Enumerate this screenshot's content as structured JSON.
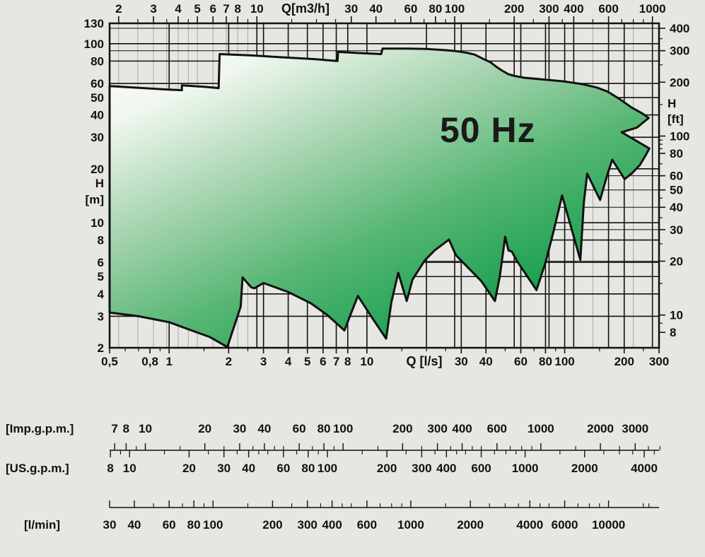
{
  "colors": {
    "background": "#e6e6e2",
    "line": "#111111",
    "grid_minor": "#a9a9a6",
    "envelope_stroke": "#111111",
    "gradient": [
      "#ffffff",
      "#f0f7ef",
      "#a6d4af",
      "#56b674",
      "#1ca152"
    ]
  },
  "chart_data": {
    "type": "area",
    "title": "50 Hz",
    "description": "Pump operating range envelope: head H versus flow Q on log-log axes",
    "x_log_range_ls": [
      0.5,
      300
    ],
    "y_log_range_m": [
      2,
      130
    ],
    "axes": {
      "top": {
        "label": "Q[m3/h]",
        "unit_per_ls": 3.6,
        "major": [
          2,
          3,
          4,
          5,
          6,
          7,
          8,
          10,
          30,
          40,
          60,
          80,
          100,
          200,
          300,
          400,
          600,
          1000
        ],
        "minor": [
          2.5,
          3.5,
          4.5,
          9,
          15,
          20,
          25,
          50,
          70,
          90,
          150,
          250,
          350,
          500,
          700,
          800,
          900
        ]
      },
      "bottom": {
        "label": "Q [l/s]",
        "major": [
          {
            "v": 0.5,
            "t": "0,5"
          },
          {
            "v": 0.8,
            "t": "0,8"
          },
          {
            "v": 1,
            "t": "1"
          },
          {
            "v": 2,
            "t": "2"
          },
          {
            "v": 3,
            "t": "3"
          },
          {
            "v": 4,
            "t": "4"
          },
          {
            "v": 5,
            "t": "5"
          },
          {
            "v": 6,
            "t": "6"
          },
          {
            "v": 7,
            "t": "7"
          },
          {
            "v": 8,
            "t": "8"
          },
          {
            "v": 10,
            "t": "10"
          },
          {
            "v": 30,
            "t": "30"
          },
          {
            "v": 40,
            "t": "40"
          },
          {
            "v": 60,
            "t": "60"
          },
          {
            "v": 80,
            "t": "80"
          },
          {
            "v": 100,
            "t": "100"
          },
          {
            "v": 200,
            "t": "200"
          },
          {
            "v": 300,
            "t": "300"
          }
        ],
        "minor": [
          0.6,
          0.7,
          0.9,
          1.5,
          2.5,
          15,
          20,
          25,
          50,
          70,
          90,
          150,
          250
        ]
      },
      "left": {
        "label": [
          "H",
          "[m]"
        ],
        "major": [
          130,
          100,
          80,
          60,
          50,
          40,
          30,
          20,
          10,
          8,
          6,
          5,
          4,
          3,
          2
        ]
      },
      "right": {
        "label": [
          "H",
          "[ft]"
        ],
        "major": [
          400,
          300,
          200,
          100,
          80,
          60,
          50,
          40,
          30,
          20,
          10,
          8
        ],
        "minor": [
          350,
          250,
          150,
          95,
          90,
          85,
          70,
          45,
          35,
          25,
          15,
          9
        ]
      }
    },
    "grid": {
      "major_v_ls": [
        1,
        2,
        3,
        4,
        5,
        6,
        7,
        8,
        10,
        20,
        30,
        40,
        60,
        80,
        100,
        200
      ],
      "major_v_m3h": [
        10,
        100,
        200,
        300,
        400,
        600,
        1000
      ],
      "minor_v_m3h": [
        2,
        2.5,
        3,
        3.5,
        4,
        4.5,
        5,
        6,
        7,
        8,
        9,
        500,
        800
      ],
      "major_h_m": [
        3,
        4,
        5,
        6,
        8,
        10,
        20,
        30,
        40,
        50,
        60,
        80,
        100
      ],
      "minor_h_ft": [
        20,
        30,
        40,
        50,
        60,
        300,
        400
      ]
    },
    "envelope_qh": [
      [
        0.5,
        3.15
      ],
      [
        0.5,
        58
      ],
      [
        0.97,
        55.5
      ],
      [
        1.16,
        55
      ],
      [
        1.16,
        58.5
      ],
      [
        1.5,
        57.5
      ],
      [
        1.78,
        56.5
      ],
      [
        1.8,
        87.5
      ],
      [
        2.6,
        86
      ],
      [
        3.7,
        84
      ],
      [
        5.5,
        82
      ],
      [
        7.1,
        80
      ],
      [
        7.15,
        90
      ],
      [
        9.5,
        88.5
      ],
      [
        11.8,
        87.5
      ],
      [
        12,
        94
      ],
      [
        16,
        94
      ],
      [
        20,
        93.5
      ],
      [
        25,
        92
      ],
      [
        28,
        91
      ],
      [
        32,
        89
      ],
      [
        35,
        87
      ],
      [
        39,
        82
      ],
      [
        42,
        79
      ],
      [
        45,
        74.5
      ],
      [
        48,
        71
      ],
      [
        52,
        67.5
      ],
      [
        56,
        66
      ],
      [
        63,
        64.5
      ],
      [
        80,
        63
      ],
      [
        100,
        61.5
      ],
      [
        122,
        59.5
      ],
      [
        145,
        57
      ],
      [
        165,
        54
      ],
      [
        190,
        49
      ],
      [
        218,
        44
      ],
      [
        245,
        41
      ],
      [
        266,
        38.5
      ],
      [
        232,
        34
      ],
      [
        194,
        32
      ],
      [
        268,
        26
      ],
      [
        255,
        23.5
      ],
      [
        240,
        21
      ],
      [
        220,
        19
      ],
      [
        201,
        17.5
      ],
      [
        174,
        22.5
      ],
      [
        163,
        18
      ],
      [
        151,
        13.4
      ],
      [
        130,
        18.8
      ],
      [
        125,
        13
      ],
      [
        120,
        6.2
      ],
      [
        97,
        14.2
      ],
      [
        88,
        9
      ],
      [
        80,
        6
      ],
      [
        72,
        4.2
      ],
      [
        58,
        6
      ],
      [
        54,
        6.9
      ],
      [
        52,
        7
      ],
      [
        50,
        8.35
      ],
      [
        47,
        5
      ],
      [
        44.4,
        3.65
      ],
      [
        38,
        4.7
      ],
      [
        32,
        5.7
      ],
      [
        28.5,
        6.5
      ],
      [
        28,
        6.7
      ],
      [
        26,
        8.05
      ],
      [
        22,
        7
      ],
      [
        19.6,
        6.15
      ],
      [
        17,
        4.8
      ],
      [
        15.9,
        3.65
      ],
      [
        14.4,
        5.25
      ],
      [
        13.3,
        3.6
      ],
      [
        12.5,
        2.25
      ],
      [
        10.5,
        3
      ],
      [
        9,
        3.9
      ],
      [
        8.3,
        3.1
      ],
      [
        7.7,
        2.5
      ],
      [
        6.3,
        3.05
      ],
      [
        5.2,
        3.55
      ],
      [
        4,
        4.1
      ],
      [
        3,
        4.6
      ],
      [
        2.7,
        4.3
      ],
      [
        2.6,
        4.35
      ],
      [
        2.35,
        4.95
      ],
      [
        2.3,
        3.4
      ],
      [
        1.97,
        2.02
      ],
      [
        1.6,
        2.3
      ],
      [
        1.3,
        2.5
      ],
      [
        1,
        2.78
      ],
      [
        0.7,
        3
      ]
    ]
  },
  "rulers": [
    {
      "label": "[Imp.g.p.m.]",
      "per_ls": 13.198,
      "ticks_dir": "up",
      "labels_pos": "above",
      "major": [
        7,
        8,
        10,
        20,
        30,
        40,
        60,
        80,
        100,
        200,
        300,
        400,
        600,
        1000,
        2000,
        3000
      ],
      "minor": [
        9,
        15,
        25,
        35,
        45,
        50,
        70,
        90,
        150,
        250,
        350,
        450,
        500,
        700,
        800,
        900,
        1500,
        2500,
        3500,
        4000
      ]
    },
    {
      "label": "[US.g.p.m.]",
      "per_ls": 15.85,
      "ticks_dir": "down",
      "labels_pos": "below",
      "major": [
        8,
        10,
        20,
        30,
        40,
        60,
        80,
        100,
        200,
        300,
        400,
        600,
        1000,
        2000,
        4000
      ],
      "minor": [
        9,
        15,
        25,
        35,
        45,
        50,
        70,
        90,
        150,
        250,
        350,
        450,
        500,
        700,
        800,
        900,
        1500,
        2500,
        3000,
        3500,
        4500
      ]
    },
    {
      "label": "[l/min]",
      "per_ls": 60,
      "ticks_dir": "up",
      "labels_pos": "below",
      "major": [
        30,
        40,
        60,
        80,
        100,
        200,
        300,
        400,
        600,
        1000,
        2000,
        4000,
        6000,
        10000
      ],
      "minor": [
        50,
        70,
        90,
        150,
        250,
        350,
        450,
        500,
        700,
        800,
        900,
        1500,
        2500,
        3000,
        3500,
        4500,
        5000,
        7000,
        8000,
        9000,
        15000,
        16000
      ]
    }
  ]
}
